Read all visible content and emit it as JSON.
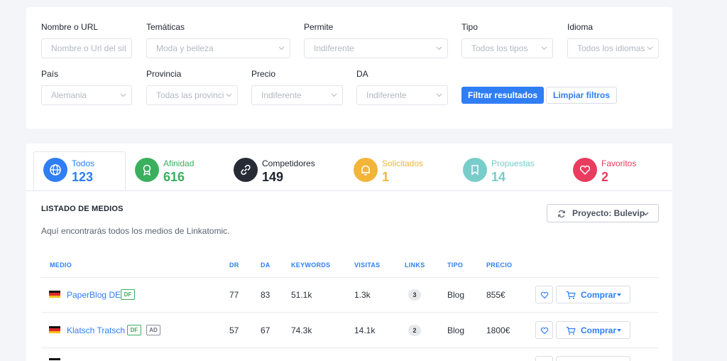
{
  "colors": {
    "accent": "#2f7ef5",
    "afinidad": "#3aaf5d",
    "competidores": "#262b36",
    "solicitados": "#f2b53a",
    "propuestas": "#77cdca",
    "favoritos": "#ea3c5f"
  },
  "filters": {
    "nombre": {
      "label": "Nombre o URL",
      "placeholder": "Nombre o Url del sit"
    },
    "tematicas": {
      "label": "Temáticas",
      "value": "Moda y belleza"
    },
    "permite": {
      "label": "Permite",
      "value": "Indiferente"
    },
    "tipo": {
      "label": "Tipo",
      "value": "Todos los tipos"
    },
    "idioma": {
      "label": "Idioma",
      "value": "Todos los idiomas"
    },
    "pais": {
      "label": "País",
      "value": "Alemania"
    },
    "provincia": {
      "label": "Provincia",
      "value": "Todas las provinci"
    },
    "precio": {
      "label": "Precio",
      "value": "Indiferente"
    },
    "da": {
      "label": "DA",
      "value": "Indiferente"
    },
    "filter_button": "Filtrar resultados",
    "clear_button": "Limpiar filtros"
  },
  "tabs": [
    {
      "label": "Todos",
      "count": "123",
      "icon": "globe-icon"
    },
    {
      "label": "Afinidad",
      "count": "616",
      "icon": "award-icon"
    },
    {
      "label": "Competidores",
      "count": "149",
      "icon": "link-icon"
    },
    {
      "label": "Solicitados",
      "count": "1",
      "icon": "bell-icon"
    },
    {
      "label": "Propuestas",
      "count": "14",
      "icon": "bookmark-icon"
    },
    {
      "label": "Favoritos",
      "count": "2",
      "icon": "heart-icon"
    }
  ],
  "listing": {
    "title": "LISTADO DE MEDIOS",
    "description": "Aquí encontrarás todos los medios de Linkatomic.",
    "project_button": "Proyecto: Bulevip",
    "columns": [
      "MEDIO",
      "DR",
      "DA",
      "KEYWORDS",
      "VISITAS",
      "LINKS",
      "TIPO",
      "PRECIO"
    ],
    "rows": [
      {
        "name": "PaperBlog DE",
        "badges": [
          "DF"
        ],
        "dr": "77",
        "da": "83",
        "keywords": "51.1k",
        "visitas": "1.3k",
        "links": "3",
        "tipo": "Blog",
        "precio": "855€",
        "buy": "Comprar"
      },
      {
        "name": "Klatsch Tratsch",
        "badges": [
          "DF",
          "AD"
        ],
        "dr": "57",
        "da": "67",
        "keywords": "74.3k",
        "visitas": "14.1k",
        "links": "2",
        "tipo": "Blog",
        "precio": "1800€",
        "buy": "Comprar"
      }
    ]
  }
}
